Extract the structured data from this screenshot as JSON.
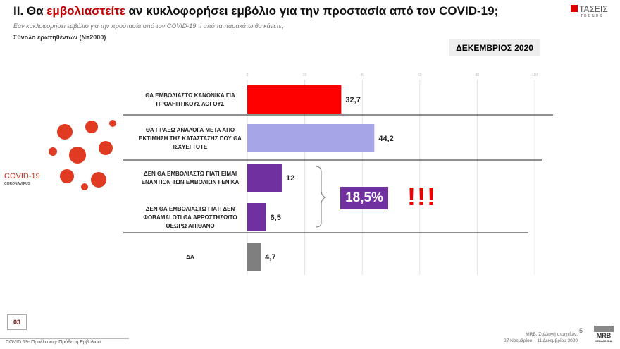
{
  "header": {
    "title_prefix": "II. Θα ",
    "title_highlight": "εμβολιαστείτε",
    "title_rest": " αν κυκλοφορήσει εμβόλιο για την προστασία από τον COVID-19;",
    "subtitle": "Εάν κυκλοφορήσει εμβόλιο για την προστασία από τον COVID-19 τι από τα παρακάτω θα κάνετε;",
    "sample": "Σύνολο ερωτηθέντων (N=2000)",
    "date_badge": "ΔΕΚΕΜΒΡΙΟΣ 2020",
    "logo": "ΤΑΣΕΙΣ",
    "logo_sub": "TRENDS"
  },
  "image": {
    "covid_text": "COVID-19",
    "coronavirus_text": "CORONAVIRUS"
  },
  "chart_data": {
    "type": "bar",
    "orientation": "horizontal",
    "xlim": [
      0,
      100
    ],
    "xticks": [
      "0",
      "20",
      "40",
      "60",
      "80",
      "100"
    ],
    "categories": [
      [
        "ΘΑ ΕΜΒΟΛΙΑΣΤΩ ΚΑΝΟΝΙΚΑ ΓΙΑ",
        "ΠΡΟΛΗΠΤΙΚΟΥΣ ΛΟΓΟΥΣ"
      ],
      [
        "ΘΑ ΠΡΑΞΩ ΑΝΑΛΟΓΑ ΜΕΤΑ ΑΠΟ",
        "ΕΚΤΙΜΗΣΗ ΤΗΣ ΚΑΤΑΣΤΑΣΗΣ ΠΟΥ ΘΑ",
        "ΙΣΧΥΕΙ ΤΟΤΕ"
      ],
      [
        "ΔΕΝ ΘΑ ΕΜΒΟΛΙΑΣΤΩ ΓΙΑΤΙ ΕΙΜΑΙ",
        "ΕΝΑΝΤΙΟΝ ΤΩΝ ΕΜΒΟΛΙΩΝ ΓΕΝΙΚΑ"
      ],
      [
        "ΔΕΝ ΘΑ ΕΜΒΟΛΙΑΣΤΩ ΓΙΑΤΙ ΔΕΝ",
        "ΦΟΒΑΜΑΙ ΟΤΙ ΘΑ ΑΡΡΩΣΤΗΣΩ/ΤΟ",
        "ΘΕΩΡΩ ΑΠΙΘΑΝΟ"
      ],
      [
        "ΔΑ"
      ]
    ],
    "values": [
      32.7,
      44.2,
      12,
      6.5,
      4.7
    ],
    "value_labels": [
      "32,7",
      "44,2",
      "12",
      "6,5",
      "4,7"
    ],
    "colors": [
      "#ff0000",
      "#a5a5e8",
      "#7030a0",
      "#7030a0",
      "#7f7f7f"
    ]
  },
  "annotation": {
    "combined": "18,5%",
    "exclaim": "!!!"
  },
  "footer": {
    "page_box": "03",
    "footer_text": "COVID 19- Προέλευση- Πρόθεση Εμβολιασ",
    "source_line1": "MRB, Συλλογή στοιχείων:",
    "source_line2": "27 Νοεμβρίου –  11 Δεκεμβρίου 2020",
    "slide_number": "5",
    "mrb_logo": "MRB",
    "mrb_sub": "HELLAS S.A."
  }
}
